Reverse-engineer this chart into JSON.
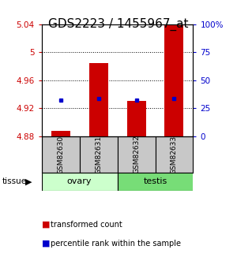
{
  "title": "GDS2223 / 1455967_at",
  "samples": [
    "GSM82630",
    "GSM82631",
    "GSM82632",
    "GSM82633"
  ],
  "groups": [
    "ovary",
    "ovary",
    "testis",
    "testis"
  ],
  "group_labels": [
    "ovary",
    "testis"
  ],
  "bar_values": [
    4.888,
    4.985,
    4.93,
    5.065
  ],
  "bar_base": 4.88,
  "percentile_values": [
    4.932,
    4.934,
    4.932,
    4.934
  ],
  "ylim_left": [
    4.88,
    5.04
  ],
  "yticks_left": [
    4.88,
    4.92,
    4.96,
    5.0,
    5.04
  ],
  "ytick_labels_left": [
    "4.88",
    "4.92",
    "4.96",
    "5",
    "5.04"
  ],
  "ylim_right": [
    0,
    100
  ],
  "yticks_right": [
    0,
    25,
    50,
    75,
    100
  ],
  "ytick_labels_right": [
    "0",
    "25",
    "50",
    "75",
    "100%"
  ],
  "bar_color": "#cc0000",
  "marker_color": "#0000cc",
  "bg_gray": "#c8c8c8",
  "bg_light_green": "#ccffcc",
  "bg_mid_green": "#77dd77",
  "title_fontsize": 11,
  "axis_label_color_left": "#cc0000",
  "axis_label_color_right": "#0000cc",
  "bar_width": 0.5
}
